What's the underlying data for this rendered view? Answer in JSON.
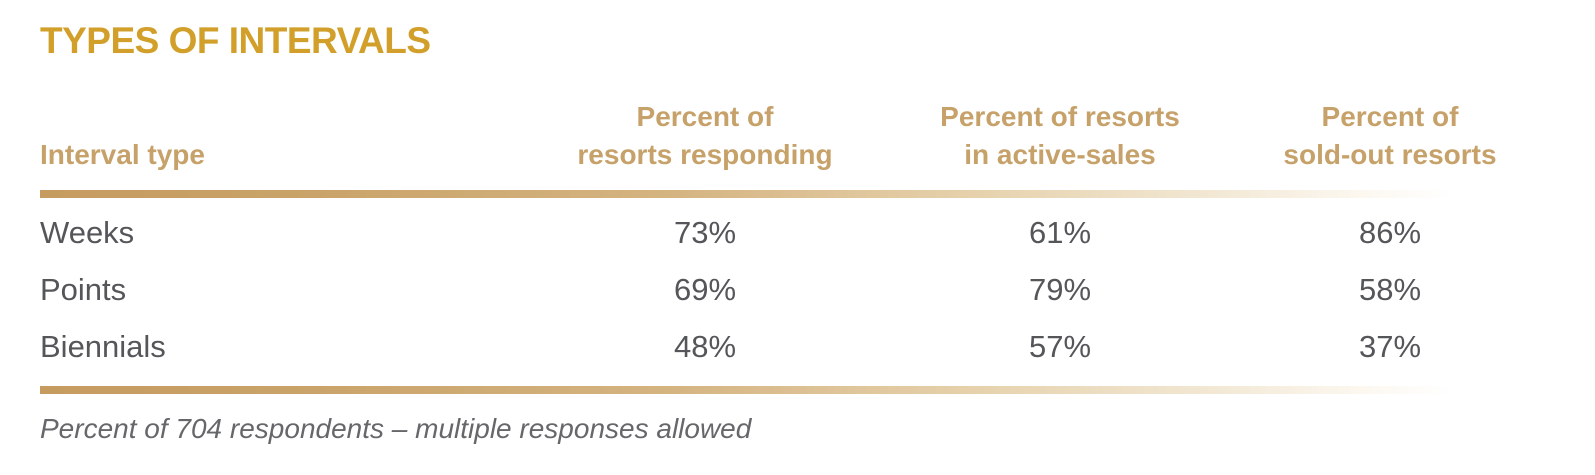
{
  "title": "TYPES OF INTERVALS",
  "table": {
    "columns": [
      {
        "label": "Interval type"
      },
      {
        "line1": "Percent of",
        "line2": "resorts responding"
      },
      {
        "line1": "Percent of resorts",
        "line2": "in active-sales"
      },
      {
        "line1": "Percent of",
        "line2": "sold-out resorts"
      }
    ],
    "rows": [
      {
        "interval": "Weeks",
        "responding": "73%",
        "active_sales": "61%",
        "sold_out": "86%"
      },
      {
        "interval": "Points",
        "responding": "69%",
        "active_sales": "79%",
        "sold_out": "58%"
      },
      {
        "interval": "Biennials",
        "responding": "48%",
        "active_sales": "57%",
        "sold_out": "37%"
      }
    ]
  },
  "footnote": "Percent of 704 respondents – multiple responses allowed",
  "colors": {
    "title_gold": "#d2a02a",
    "header_tan": "#c6a26a",
    "body_gray": "#55565a",
    "footnote_gray": "#66676a",
    "rule_gradient_start": "#c59b60"
  },
  "chart_data": {
    "type": "table",
    "title": "TYPES OF INTERVALS",
    "categories": [
      "Weeks",
      "Points",
      "Biennials"
    ],
    "series": [
      {
        "name": "Percent of resorts responding",
        "values": [
          73,
          69,
          48
        ]
      },
      {
        "name": "Percent of resorts in active-sales",
        "values": [
          61,
          79,
          57
        ]
      },
      {
        "name": "Percent of sold-out resorts",
        "values": [
          86,
          58,
          37
        ]
      }
    ],
    "unit": "%",
    "note": "Percent of 704 respondents – multiple responses allowed"
  }
}
